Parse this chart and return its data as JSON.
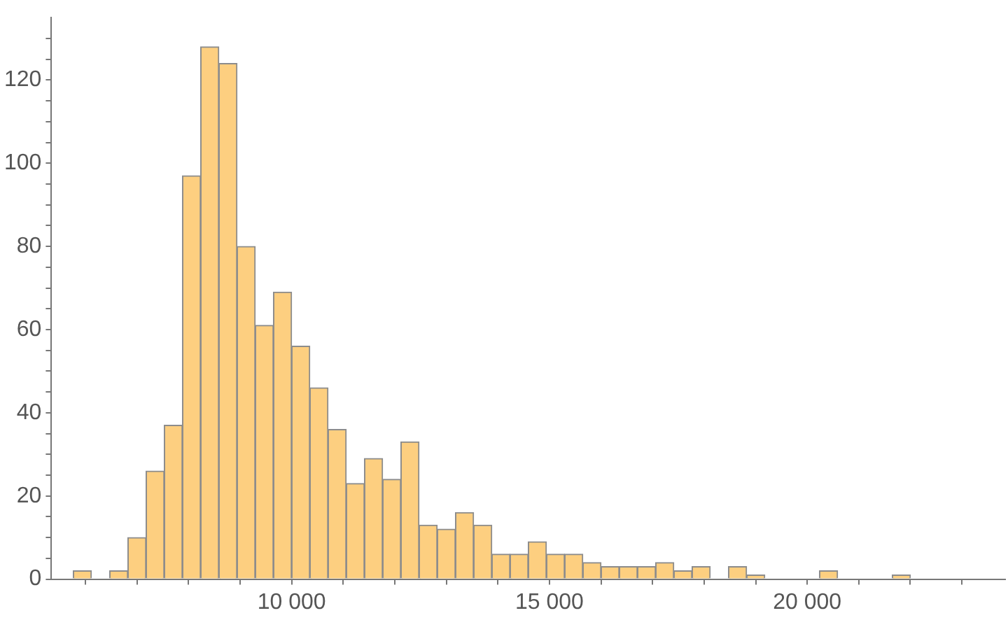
{
  "chart_data": {
    "type": "histogram",
    "bins": [
      5764,
      6117,
      6470,
      6823,
      7176,
      7529,
      7882,
      8235,
      8588,
      8941,
      9294,
      9647,
      10000,
      10353,
      10706,
      11059,
      11412,
      11765,
      12118,
      12471,
      12824,
      13177,
      13530,
      13883,
      14236,
      14589,
      14942,
      15295,
      15648,
      16001,
      16354,
      16707,
      17060,
      17413,
      17766,
      18119,
      18472,
      18825,
      19178,
      19531,
      19884,
      20237,
      20590,
      20943,
      21296,
      21649,
      22002
    ],
    "values": [
      2,
      0,
      2,
      10,
      26,
      37,
      97,
      128,
      124,
      80,
      61,
      69,
      56,
      46,
      36,
      23,
      29,
      24,
      33,
      13,
      12,
      16,
      13,
      6,
      6,
      9,
      6,
      6,
      4,
      3,
      3,
      3,
      4,
      2,
      3,
      0,
      3,
      1,
      0,
      0,
      0,
      2,
      0,
      0,
      0,
      1
    ],
    "color": "#fdcf80",
    "xlim": [
      5340,
      23840
    ],
    "xticks": [
      {
        "value": 6000,
        "label": null
      },
      {
        "value": 7000,
        "label": null
      },
      {
        "value": 8000,
        "label": null
      },
      {
        "value": 9000,
        "label": null
      },
      {
        "value": 10000,
        "label": "10 000"
      },
      {
        "value": 11000,
        "label": null
      },
      {
        "value": 12000,
        "label": null
      },
      {
        "value": 13000,
        "label": null
      },
      {
        "value": 14000,
        "label": null
      },
      {
        "value": 15000,
        "label": "15 000"
      },
      {
        "value": 16000,
        "label": null
      },
      {
        "value": 17000,
        "label": null
      },
      {
        "value": 18000,
        "label": null
      },
      {
        "value": 19000,
        "label": null
      },
      {
        "value": 20000,
        "label": "20 000"
      },
      {
        "value": 21000,
        "label": null
      },
      {
        "value": 22000,
        "label": null
      },
      {
        "value": 23000,
        "label": null
      }
    ],
    "ylim": [
      0,
      135
    ],
    "yticks": [
      0,
      {
        "value": 5,
        "label": null
      },
      {
        "value": 10,
        "label": null
      },
      {
        "value": 15,
        "label": null
      },
      20,
      {
        "value": 25,
        "label": null
      },
      {
        "value": 30,
        "label": null
      },
      {
        "value": 35,
        "label": null
      },
      40,
      {
        "value": 45,
        "label": null
      },
      {
        "value": 50,
        "label": null
      },
      {
        "value": 55,
        "label": null
      },
      60,
      {
        "value": 65,
        "label": null
      },
      {
        "value": 70,
        "label": null
      },
      {
        "value": 75,
        "label": null
      },
      80,
      {
        "value": 85,
        "label": null
      },
      {
        "value": 90,
        "label": null
      },
      {
        "value": 95,
        "label": null
      },
      100,
      {
        "value": 105,
        "label": null
      },
      {
        "value": 110,
        "label": null
      },
      {
        "value": 115,
        "label": null
      },
      120,
      {
        "value": 125,
        "label": null
      },
      {
        "value": 130,
        "label": null
      }
    ],
    "grid": false
  }
}
